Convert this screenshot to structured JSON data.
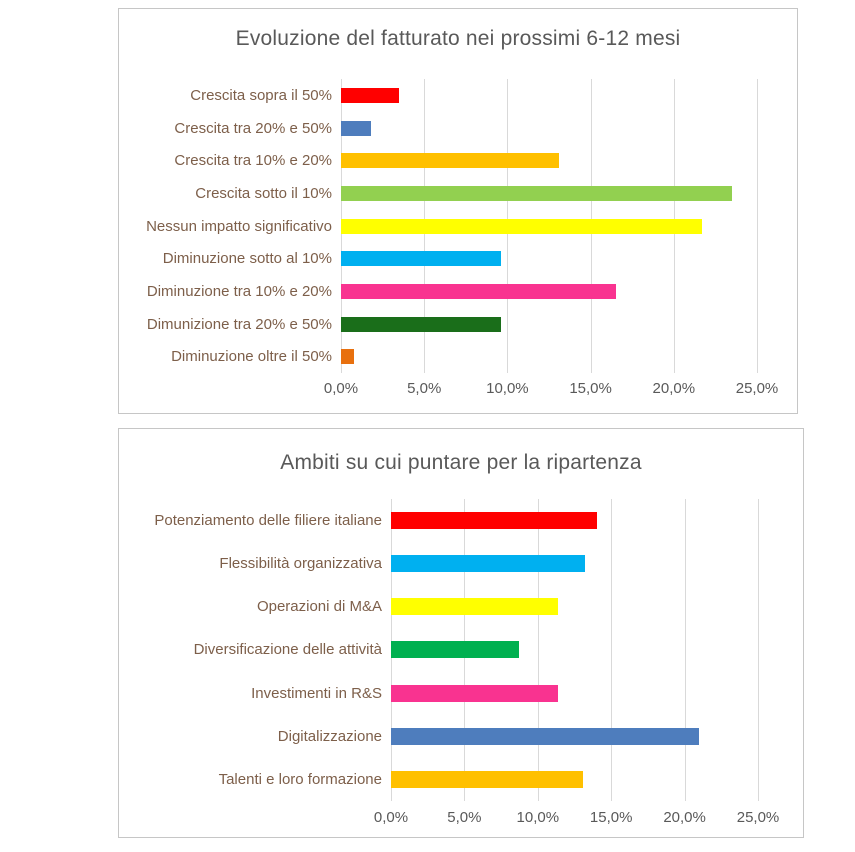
{
  "styles": {
    "title_color": "#595959",
    "category_label_color": "#7d5f4a",
    "tick_label_color": "#595959",
    "gridline_color": "#d9d9d9",
    "frame_border_color": "#c6c6c6",
    "background": "#ffffff"
  },
  "chart_data": [
    {
      "type": "bar",
      "orientation": "horizontal",
      "title": "Evoluzione del fatturato nei prossimi 6-12 mesi",
      "categories": [
        "Crescita sopra il 50%",
        "Crescita tra 20% e 50%",
        "Crescita tra 10% e 20%",
        "Crescita sotto il 10%",
        "Nessun impatto significativo",
        "Diminuzione sotto al 10%",
        "Diminuzione tra 10% e 20%",
        "Dimunizione tra 20% e 50%",
        "Diminuzione oltre il 50%"
      ],
      "values": [
        3.5,
        1.8,
        13.1,
        23.5,
        21.7,
        9.6,
        16.5,
        9.6,
        0.8
      ],
      "bar_colors": [
        "#FF0000",
        "#4E7DBD",
        "#FFC000",
        "#92D050",
        "#FFFF00",
        "#00B0F0",
        "#F93390",
        "#1A6E1A",
        "#E8700E"
      ],
      "x_ticks": [
        "0,0%",
        "5,0%",
        "10,0%",
        "15,0%",
        "20,0%",
        "25,0%"
      ],
      "xlim": [
        0,
        25
      ],
      "grid": "vertical",
      "legend": "none",
      "value_unit": "percent"
    },
    {
      "type": "bar",
      "orientation": "horizontal",
      "title": "Ambiti su cui puntare per la ripartenza",
      "categories": [
        "Potenziamento delle filiere italiane",
        "Flessibilità organizzativa",
        "Operazioni di M&A",
        "Diversificazione delle attività",
        "Investimenti in R&S",
        "Digitalizzazione",
        "Talenti e loro formazione"
      ],
      "values": [
        14.0,
        13.2,
        11.4,
        8.7,
        11.4,
        21.0,
        13.1
      ],
      "bar_colors": [
        "#FF0000",
        "#00B0F0",
        "#FFFF00",
        "#00B050",
        "#F93390",
        "#4E7DBD",
        "#FFC000"
      ],
      "x_ticks": [
        "0,0%",
        "5,0%",
        "10,0%",
        "15,0%",
        "20,0%",
        "25,0%"
      ],
      "xlim": [
        0,
        25
      ],
      "grid": "vertical",
      "legend": "none",
      "value_unit": "percent"
    }
  ]
}
